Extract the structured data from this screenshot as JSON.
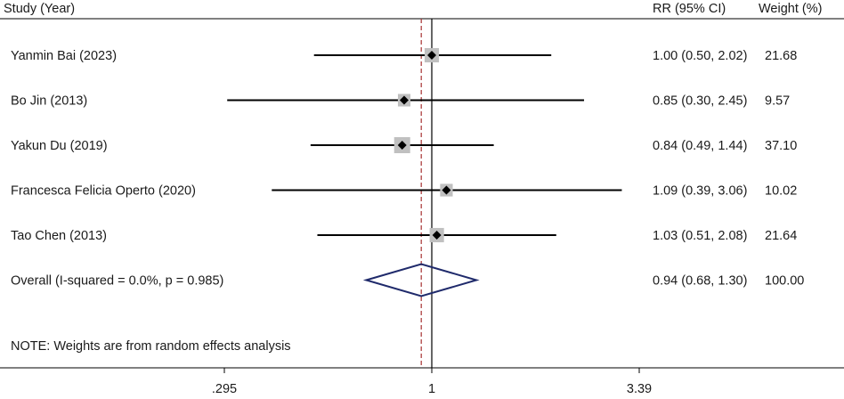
{
  "chart_data": {
    "type": "forest",
    "x_scale": "log",
    "xlim": [
      0.295,
      3.39
    ],
    "x_ticks": [
      {
        "value": 0.295,
        "label": ".295"
      },
      {
        "value": 1,
        "label": "1"
      },
      {
        "value": 3.39,
        "label": "3.39"
      }
    ],
    "null_line": 1,
    "overall_line": 0.94,
    "headers": {
      "study": "Study (Year)",
      "effect": "RR (95% CI)",
      "weight": "Weight (%)"
    },
    "studies": [
      {
        "label": "Yanmin Bai (2023)",
        "rr": 1.0,
        "lo": 0.5,
        "hi": 2.02,
        "ci_text": "1.00 (0.50, 2.02)",
        "weight": 21.68,
        "weight_text": "21.68"
      },
      {
        "label": "Bo Jin  (2013)",
        "rr": 0.85,
        "lo": 0.3,
        "hi": 2.45,
        "ci_text": "0.85 (0.30, 2.45)",
        "weight": 9.57,
        "weight_text": "9.57"
      },
      {
        "label": "Yakun Du  (2019)",
        "rr": 0.84,
        "lo": 0.49,
        "hi": 1.44,
        "ci_text": "0.84 (0.49, 1.44)",
        "weight": 37.1,
        "weight_text": "37.10"
      },
      {
        "label": "Francesca Felicia Operto (2020)",
        "rr": 1.09,
        "lo": 0.39,
        "hi": 3.06,
        "ci_text": "1.09 (0.39, 3.06)",
        "weight": 10.02,
        "weight_text": "10.02"
      },
      {
        "label": "Tao Chen  (2013)",
        "rr": 1.03,
        "lo": 0.51,
        "hi": 2.08,
        "ci_text": "1.03 (0.51, 2.08)",
        "weight": 21.64,
        "weight_text": "21.64"
      }
    ],
    "overall": {
      "label": "Overall  (I-squared = 0.0%, p = 0.985)",
      "rr": 0.94,
      "lo": 0.68,
      "hi": 1.3,
      "ci_text": "0.94 (0.68, 1.30)",
      "weight_text": "100.00"
    },
    "note": "NOTE: Weights are from random effects analysis",
    "colors": {
      "line": "#000000",
      "box": "#c0c0c0",
      "diamond": "#1f2a6b",
      "dashed": "#a83232"
    }
  }
}
